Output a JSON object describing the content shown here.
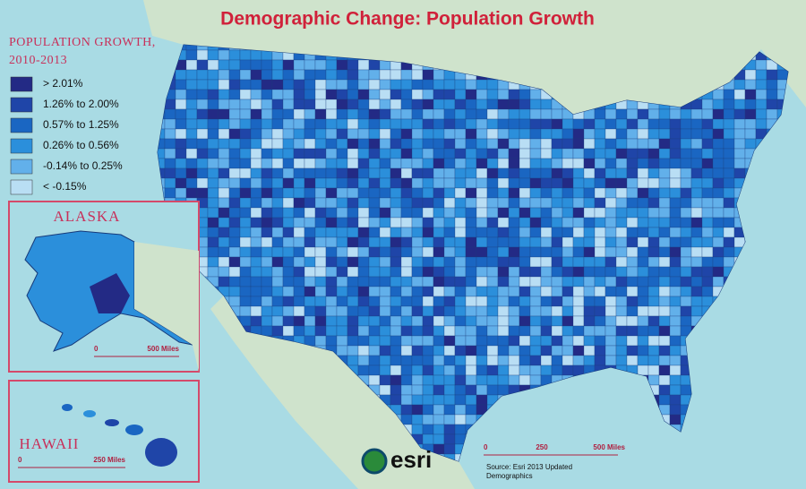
{
  "title": "Demographic Change:  Population Growth",
  "legend": {
    "title_lines": [
      "POPULATION GROWTH,",
      "2010-2013"
    ],
    "items": [
      {
        "label": "> 2.01%",
        "color": "#232a85"
      },
      {
        "label": "1.26% to 2.00%",
        "color": "#1f45a8"
      },
      {
        "label": "0.57% to 1.25%",
        "color": "#1a66c2"
      },
      {
        "label": "0.26% to 0.56%",
        "color": "#2b8fdb"
      },
      {
        "label": "-0.14% to 0.25%",
        "color": "#62b0ea"
      },
      {
        "label": "< -0.15%",
        "color": "#b9def4"
      }
    ]
  },
  "insets": {
    "alaska": {
      "label": "ALASKA",
      "scale": [
        "0",
        "500 Miles"
      ]
    },
    "hawaii": {
      "label": "HAWAII",
      "scale": [
        "0",
        "250 Miles"
      ]
    }
  },
  "scale": [
    "0",
    "250",
    "500 Miles"
  ],
  "source_lines": [
    "Source:  Esri 2013 Updated",
    "Demographics"
  ],
  "logo": "esri"
}
